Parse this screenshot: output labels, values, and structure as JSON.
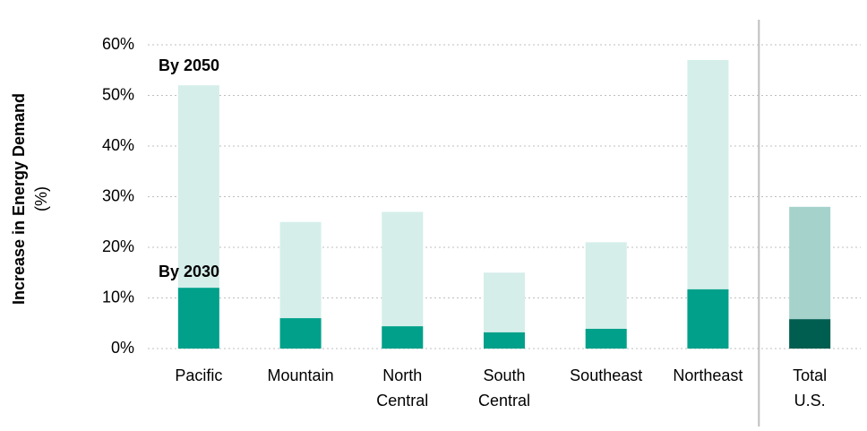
{
  "chart_data": {
    "type": "bar",
    "overlap": true,
    "ylabel": "Increase in Energy Demand",
    "ylabel_unit": "(%)",
    "categories": [
      "Pacific",
      "Mountain",
      "North Central",
      "South Central",
      "Southeast",
      "Northeast",
      "Total U.S."
    ],
    "series": [
      {
        "name": "By 2050",
        "color": "#d5eeea",
        "label_color": "#a3d9cf",
        "values": [
          52,
          25,
          27,
          15,
          21,
          57,
          28
        ],
        "colors": [
          "#d5eeea",
          "#d5eeea",
          "#d5eeea",
          "#d5eeea",
          "#d5eeea",
          "#d5eeea",
          "#a5d3cb"
        ]
      },
      {
        "name": "By 2030",
        "color": "#00a08a",
        "label_color": "#00a08a",
        "values": [
          12,
          6,
          4.4,
          3.2,
          3.9,
          11.7,
          5.8
        ],
        "colors": [
          "#00a08a",
          "#00a08a",
          "#00a08a",
          "#00a08a",
          "#00a08a",
          "#00a08a",
          "#005e50"
        ]
      }
    ],
    "ylim": [
      0,
      60
    ],
    "yticks": [
      {
        "value": 0,
        "label": "0%"
      },
      {
        "value": 10,
        "label": "10%"
      },
      {
        "value": 20,
        "label": "20%"
      },
      {
        "value": 30,
        "label": "30%"
      },
      {
        "value": 40,
        "label": "40%"
      },
      {
        "value": 50,
        "label": "50%"
      },
      {
        "value": 60,
        "label": "60%"
      }
    ],
    "grid": true
  }
}
